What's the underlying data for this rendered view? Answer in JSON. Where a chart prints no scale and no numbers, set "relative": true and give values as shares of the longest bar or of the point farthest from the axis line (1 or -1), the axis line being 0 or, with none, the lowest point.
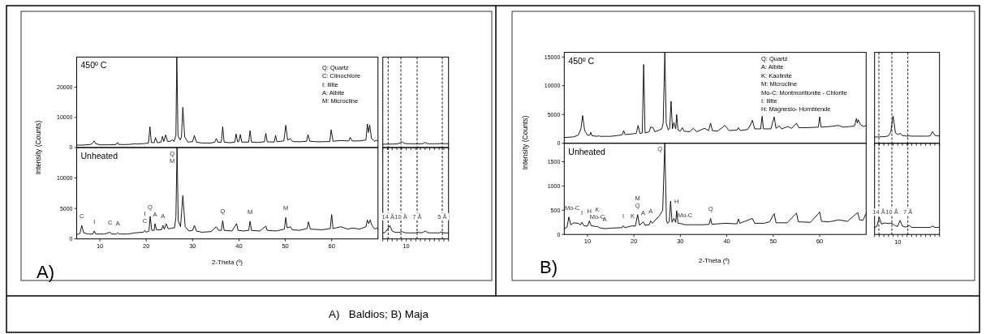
{
  "chart_data": [
    {
      "type": "line",
      "title": "450º C",
      "xlim": [
        5,
        70
      ],
      "ylim": [
        0,
        30000
      ],
      "yticks": [
        0,
        10000,
        20000
      ],
      "tick_labels": "y",
      "annotations": [
        "Q: Quartz",
        "C: Clinochlore",
        "I: Illite",
        "A: Albite",
        "M: Microcline"
      ],
      "series": [
        {
          "color": "#000000",
          "x": [
            5,
            6,
            7,
            8,
            8.4,
            8.75,
            9.1,
            10,
            12,
            13.5,
            13.8,
            14.1,
            16,
            17.4,
            17.7,
            18,
            19.5,
            20.5,
            20.8,
            21.1,
            21.7,
            22,
            22.4,
            23.2,
            23.5,
            23.8,
            24.2,
            24.6,
            25.3,
            25.6,
            26,
            26.4,
            26.6,
            26.85,
            27.3,
            27.6,
            27.9,
            28.3,
            29,
            30,
            30.4,
            30.8,
            32,
            34,
            34.8,
            35.1,
            35.5,
            36.2,
            36.5,
            36.8,
            38,
            39.1,
            39.4,
            39.7,
            40,
            40.3,
            40.6,
            42.1,
            42.4,
            42.7,
            44,
            45.5,
            45.8,
            46.1,
            47.6,
            47.9,
            48.2,
            49.7,
            50.1,
            50.5,
            51.1,
            51.6,
            53,
            54.6,
            54.9,
            55.3,
            57,
            59.6,
            59.9,
            60.3,
            62,
            63.7,
            64,
            64.4,
            66,
            67.4,
            67.7,
            67.95,
            68.2,
            68.6,
            69.3,
            69.8,
            70
          ],
          "values": [
            800,
            800,
            900,
            1000,
            1400,
            2200,
            1300,
            900,
            900,
            1000,
            1700,
            1000,
            1000,
            1200,
            1300,
            1200,
            1300,
            1500,
            6900,
            1700,
            1600,
            3300,
            1600,
            1800,
            3700,
            2000,
            4200,
            2000,
            2100,
            2600,
            2000,
            4000,
            30000,
            4000,
            2500,
            3500,
            13300,
            3500,
            1800,
            2000,
            4000,
            1800,
            1500,
            1500,
            1800,
            3000,
            1700,
            1800,
            6900,
            1800,
            1600,
            1800,
            4500,
            1900,
            2000,
            4300,
            1800,
            1800,
            5600,
            1800,
            1700,
            1900,
            4700,
            1900,
            1800,
            4000,
            1900,
            2200,
            7400,
            2500,
            2900,
            2000,
            1900,
            2100,
            4300,
            2100,
            1900,
            2000,
            5900,
            2100,
            2300,
            2200,
            3400,
            2200,
            2200,
            2500,
            7800,
            5000,
            7500,
            3000,
            2100,
            2400,
            2100
          ]
        }
      ]
    },
    {
      "type": "line",
      "relative": true,
      "categories": [
        null,
        null,
        null,
        null,
        null,
        null,
        null,
        null,
        null,
        null,
        null,
        null,
        null,
        null,
        null,
        null,
        null,
        null,
        null,
        null,
        null,
        null,
        null,
        null,
        null,
        null,
        null,
        null,
        null
      ],
      "ref_lines": [
        {
          "axis": "x",
          "color": "#000000",
          "line_style": "dashed"
        },
        {
          "axis": "x",
          "color": "#000000",
          "line_style": "dashed"
        },
        {
          "axis": "x",
          "color": "#000000",
          "line_style": "dashed"
        },
        {
          "axis": "x",
          "color": "#000000",
          "line_style": "dashed"
        }
      ],
      "series": [
        {
          "color": "#000000",
          "values": [
            0.55,
            0.56,
            0.58,
            0.58,
            0.58,
            0.59,
            0.6,
            0.7,
            1,
            0.73,
            0.65,
            0.64,
            0.63,
            0.63,
            0.63,
            0.63,
            0.63,
            0.65,
            0.85,
            0.65,
            0.63,
            0.63,
            0.63,
            0.64,
            0.65,
            0.7,
            0.65,
            0.65,
            0.65
          ]
        }
      ]
    },
    {
      "type": "line",
      "title": "Unheated",
      "xlabel": "2-Theta (º)",
      "ylabel": "Intensity (Counts)",
      "xlim": [
        5,
        70
      ],
      "ylim": [
        0,
        15000
      ],
      "xticks": [
        10,
        20,
        30,
        40,
        50,
        60
      ],
      "yticks": [
        0,
        5000,
        10000
      ],
      "annotations": [
        "A)",
        "A)   Baldios; B) Maja",
        {
          "text": "C",
          "x": 6.1,
          "y": 2200
        },
        {
          "text": "I",
          "x": 8.8,
          "y": 1300
        },
        {
          "text": "C",
          "x": 12.2,
          "y": 1100
        },
        {
          "text": "A",
          "x": 13.9,
          "y": 1000
        },
        {
          "text": "C",
          "x": 19.7,
          "y": 1400
        },
        {
          "text": "I",
          "x": 19.7,
          "y": 1400
        },
        {
          "text": "Q",
          "x": 20.85,
          "y": 3700
        },
        {
          "text": "A",
          "x": 21.9,
          "y": 2500
        },
        {
          "text": "A",
          "x": 23.6,
          "y": 2200
        },
        {
          "text": "Q",
          "x": 26.65,
          "y": 15000
        },
        {
          "text": "M",
          "x": 26.65,
          "y": 15000
        },
        {
          "text": "Q",
          "x": 36.5,
          "y": 3000
        },
        {
          "text": "M",
          "x": 42.4,
          "y": 2900
        },
        {
          "text": "M",
          "x": 50.1,
          "y": 3500
        }
      ],
      "series": [
        {
          "color": "#000000",
          "x": [
            5,
            5.7,
            6.1,
            6.5,
            7.5,
            8.5,
            8.8,
            9.1,
            11,
            12.2,
            12.5,
            13.6,
            13.9,
            14.2,
            16,
            17.7,
            19.4,
            19.7,
            20,
            20.6,
            20.85,
            21.2,
            21.7,
            21.9,
            22.2,
            23.3,
            23.6,
            23.9,
            24.3,
            24.7,
            25.3,
            25.6,
            26.1,
            26.4,
            26.65,
            26.9,
            27.4,
            27.9,
            28.4,
            29.2,
            30,
            30.4,
            30.8,
            32,
            34,
            35.1,
            35.6,
            36.2,
            36.5,
            36.8,
            38.5,
            39.5,
            39.8,
            41,
            42.1,
            42.4,
            42.7,
            44.5,
            45.8,
            46.1,
            48,
            49.8,
            50.1,
            50.4,
            51.1,
            51.5,
            53,
            54.7,
            55,
            55.4,
            58,
            59.7,
            60,
            60.3,
            62,
            63.5,
            64.5,
            66,
            67.4,
            67.7,
            68,
            68.3,
            68.7,
            69.3,
            69.8,
            70
          ],
          "values": [
            700,
            900,
            2200,
            1000,
            800,
            800,
            1300,
            800,
            800,
            1100,
            800,
            800,
            1000,
            800,
            800,
            1000,
            1100,
            1400,
            1100,
            1300,
            3700,
            1400,
            1400,
            2500,
            1500,
            1500,
            2200,
            1600,
            2500,
            1700,
            1700,
            1800,
            1800,
            3500,
            15000,
            3000,
            2000,
            7100,
            2000,
            1300,
            1400,
            2200,
            1300,
            1100,
            1200,
            2000,
            1400,
            1400,
            3000,
            1400,
            1300,
            2500,
            1400,
            1300,
            1400,
            2900,
            1400,
            1300,
            2100,
            1400,
            1300,
            1600,
            3500,
            1800,
            2000,
            1500,
            1400,
            1700,
            2800,
            1600,
            1500,
            1700,
            4000,
            1700,
            2000,
            1600,
            1800,
            1600,
            2000,
            3100,
            2500,
            3100,
            2200,
            1600,
            1800,
            1600
          ]
        }
      ]
    },
    {
      "type": "line",
      "relative": true,
      "annotations": [
        "10"
      ],
      "categories": [
        null,
        null,
        null,
        null,
        null,
        null,
        null,
        null,
        null,
        null,
        null,
        null,
        null,
        null,
        null,
        null,
        null,
        null,
        null,
        null,
        null,
        null,
        null,
        null,
        null,
        null,
        null,
        null,
        null
      ],
      "ref_lines": [
        {
          "axis": "x",
          "label": "14 Å",
          "color": "#000000",
          "line_style": "dashed"
        },
        {
          "axis": "x",
          "label": "10 Å",
          "color": "#000000",
          "line_style": "dashed"
        },
        {
          "axis": "x",
          "label": "7 Å",
          "color": "#000000",
          "line_style": "dashed"
        },
        {
          "axis": "x",
          "label": "5 Å",
          "color": "#000000",
          "line_style": "dashed"
        }
      ],
      "series": [
        {
          "color": "#000000",
          "values": [
            0.45,
            0.48,
            0.73,
            1,
            0.59,
            0.5,
            0.49,
            0.48,
            0.55,
            0.48,
            0.45,
            0.45,
            0.45,
            0.45,
            0.45,
            0.5,
            0.45,
            0.48,
            0.59,
            0.48,
            0.45,
            0.45,
            0.45,
            0.45,
            0.45,
            0.52,
            0.45,
            0.45,
            0.45
          ]
        }
      ]
    },
    {
      "type": "line",
      "title": "450º C",
      "xlim": [
        5,
        70
      ],
      "ylim": [
        0,
        15800
      ],
      "yticks": [
        0,
        5000,
        10000,
        15000
      ],
      "tick_labels": "y",
      "annotations": [
        "Q: Quartz",
        "A: Albite",
        "K: Kaolinite",
        "M: Microcline",
        "Mo-C: Montmorillonite - Chlorite",
        "I: Illite",
        "H: Magnesio- Hornblende"
      ],
      "series": [
        {
          "color": "#000000",
          "x": [
            5,
            7,
            8,
            8.6,
            8.95,
            9.4,
            10,
            10.5,
            10.7,
            11,
            12.1,
            12.4,
            12.7,
            13.7,
            15,
            17,
            17.5,
            17.8,
            18.1,
            20.5,
            20.9,
            21.3,
            21.8,
            22.1,
            22.4,
            23.3,
            23.6,
            24.1,
            24.5,
            25.5,
            26,
            26.3,
            26.66,
            26.95,
            27.4,
            27.7,
            28,
            28.3,
            28.6,
            29,
            29.2,
            29.5,
            30,
            30.4,
            30.8,
            32,
            32.8,
            33.5,
            35.2,
            36.1,
            36.5,
            36.9,
            38,
            39.6,
            40.5,
            42.2,
            42.5,
            42.9,
            44.5,
            45.1,
            45.5,
            46,
            47.3,
            47.6,
            47.9,
            49.5,
            50.2,
            50.6,
            51.3,
            51.8,
            53.1,
            54,
            55,
            55.5,
            57,
            59.7,
            60,
            60.3,
            62,
            64.1,
            65,
            66.5,
            67.5,
            67.9,
            68.1,
            68.3,
            68.8,
            69.5,
            70
          ],
          "values": [
            1000,
            1100,
            1400,
            2500,
            4800,
            2200,
            1400,
            1400,
            1900,
            1300,
            1200,
            1300,
            1200,
            1200,
            1200,
            1400,
            1500,
            2200,
            1500,
            1700,
            3100,
            1700,
            1800,
            13700,
            1800,
            2000,
            2800,
            2700,
            2000,
            2300,
            2500,
            3500,
            15800,
            3500,
            2300,
            2600,
            7300,
            2500,
            3600,
            2500,
            5000,
            2300,
            2100,
            2700,
            2100,
            2000,
            2600,
            2000,
            2600,
            2200,
            3500,
            2200,
            2100,
            3100,
            2200,
            2300,
            2700,
            2200,
            2400,
            3200,
            4000,
            2500,
            2500,
            4700,
            2500,
            2500,
            4600,
            2600,
            3000,
            2500,
            2900,
            2600,
            3500,
            2700,
            2700,
            2800,
            4600,
            2800,
            2900,
            3100,
            2800,
            2900,
            3000,
            4300,
            3500,
            4100,
            3200,
            2900,
            3100
          ]
        }
      ]
    },
    {
      "type": "line",
      "relative": true,
      "categories": [
        null,
        null,
        null,
        null,
        null,
        null,
        null,
        null,
        null,
        null,
        null,
        null,
        null,
        null,
        null,
        null,
        null,
        null,
        null,
        null,
        null,
        null,
        null,
        null,
        null,
        null,
        null,
        null,
        null
      ],
      "ref_lines": [
        {
          "axis": "x",
          "color": "#000000",
          "line_style": "dashed"
        },
        {
          "axis": "x",
          "color": "#000000",
          "line_style": "dashed"
        },
        {
          "axis": "x",
          "color": "#000000",
          "line_style": "dashed"
        }
      ],
      "series": [
        {
          "color": "#000000",
          "values": [
            0.23,
            0.23,
            0.23,
            0.24,
            0.24,
            0.25,
            0.27,
            0.42,
            1,
            0.38,
            0.32,
            0.36,
            0.28,
            0.27,
            0.26,
            0.27,
            0.26,
            0.26,
            0.26,
            0.26,
            0.26,
            0.26,
            0.26,
            0.26,
            0.27,
            0.42,
            0.29,
            0.27,
            0.27
          ]
        }
      ]
    },
    {
      "type": "line",
      "title": "Unheated",
      "xlabel": "2-Theta (º)",
      "ylabel": "Intensity (Counts)",
      "xlim": [
        5,
        70
      ],
      "ylim": [
        0,
        1880
      ],
      "xticks": [
        10,
        20,
        30,
        40,
        50,
        60
      ],
      "yticks": [
        0,
        500,
        1000,
        1500
      ],
      "annotations": [
        "B)",
        {
          "text": "Mo-C",
          "x": 6,
          "y": 360
        },
        {
          "text": "I",
          "x": 8.8,
          "y": 250
        },
        {
          "text": "H",
          "x": 10.4,
          "y": 280
        },
        {
          "text": "Mo-C",
          "x": 12.1,
          "y": 170
        },
        {
          "text": "K",
          "x": 12.1,
          "y": 170
        },
        {
          "text": "A",
          "x": 13.7,
          "y": 120
        },
        {
          "text": "I",
          "x": 17.7,
          "y": 180
        },
        {
          "text": "K",
          "x": 19.7,
          "y": 180
        },
        {
          "text": "Q",
          "x": 20.8,
          "y": 410
        },
        {
          "text": "M",
          "x": 20.8,
          "y": 410
        },
        {
          "text": "A",
          "x": 22,
          "y": 260
        },
        {
          "text": "A",
          "x": 23.6,
          "y": 280
        },
        {
          "text": "Q",
          "x": 26.65,
          "y": 1880
        },
        {
          "text": "H",
          "x": 29.2,
          "y": 490
        },
        {
          "text": "Mo-C",
          "x": 31,
          "y": 200
        },
        {
          "text": "Q",
          "x": 36.5,
          "y": 330
        }
      ],
      "series": [
        {
          "color": "#000000",
          "x": [
            5,
            5.6,
            6,
            6.4,
            7,
            8,
            8.5,
            8.8,
            9.2,
            10,
            10.4,
            10.8,
            12,
            12.1,
            12.5,
            13.7,
            15,
            17.4,
            17.7,
            18,
            19.7,
            20.3,
            20.8,
            21.2,
            22,
            22.4,
            23.3,
            23.6,
            24,
            25.6,
            26.2,
            26.65,
            27,
            27.2,
            27.6,
            27.9,
            28.2,
            28.6,
            29,
            29.2,
            29.5,
            30.3,
            31,
            32.8,
            35,
            36.2,
            36.5,
            36.8,
            39.6,
            42.2,
            42.5,
            42.8,
            45.5,
            46,
            48,
            49.2,
            50.2,
            50.6,
            53,
            55,
            55.4,
            58,
            60,
            60.4,
            62,
            64.1,
            66,
            67.9,
            68.2,
            68.6,
            69.3,
            70
          ],
          "values": [
            120,
            150,
            360,
            200,
            240,
            230,
            200,
            250,
            180,
            170,
            280,
            180,
            160,
            170,
            140,
            120,
            130,
            140,
            180,
            140,
            180,
            170,
            410,
            190,
            260,
            190,
            200,
            280,
            230,
            400,
            500,
            1880,
            300,
            230,
            260,
            690,
            250,
            330,
            250,
            490,
            230,
            220,
            200,
            200,
            200,
            210,
            330,
            210,
            230,
            220,
            320,
            230,
            330,
            230,
            230,
            260,
            430,
            240,
            240,
            440,
            260,
            250,
            460,
            270,
            260,
            300,
            270,
            430,
            450,
            300,
            290,
            430
          ]
        }
      ]
    },
    {
      "type": "line",
      "relative": true,
      "annotations": [
        "10"
      ],
      "categories": [
        null,
        null,
        null,
        null,
        null,
        null,
        null,
        null,
        null,
        null,
        null,
        null,
        null,
        null,
        null,
        null,
        null,
        null,
        null,
        null,
        null,
        null,
        null,
        null,
        null,
        null,
        null,
        null,
        null
      ],
      "ref_lines": [
        {
          "axis": "x",
          "label": "14 Å",
          "color": "#000000",
          "line_style": "dashed"
        },
        {
          "axis": "x",
          "label": "10 Å",
          "color": "#000000",
          "line_style": "dashed"
        },
        {
          "axis": "x",
          "label": "7 Å",
          "color": "#000000",
          "line_style": "dashed"
        }
      ],
      "series": [
        {
          "color": "#000000",
          "values": [
            0.41,
            0.47,
            1,
            0.6,
            0.66,
            0.66,
            0.63,
            0.66,
            0.6,
            0.5,
            0.47,
            0.82,
            0.49,
            0.44,
            0.44,
            0.52,
            0.41,
            0.41,
            0.41,
            0.41,
            0.41,
            0.41,
            0.41,
            0.41,
            0.41,
            0.49,
            0.41,
            0.41,
            0.41
          ]
        }
      ]
    }
  ]
}
